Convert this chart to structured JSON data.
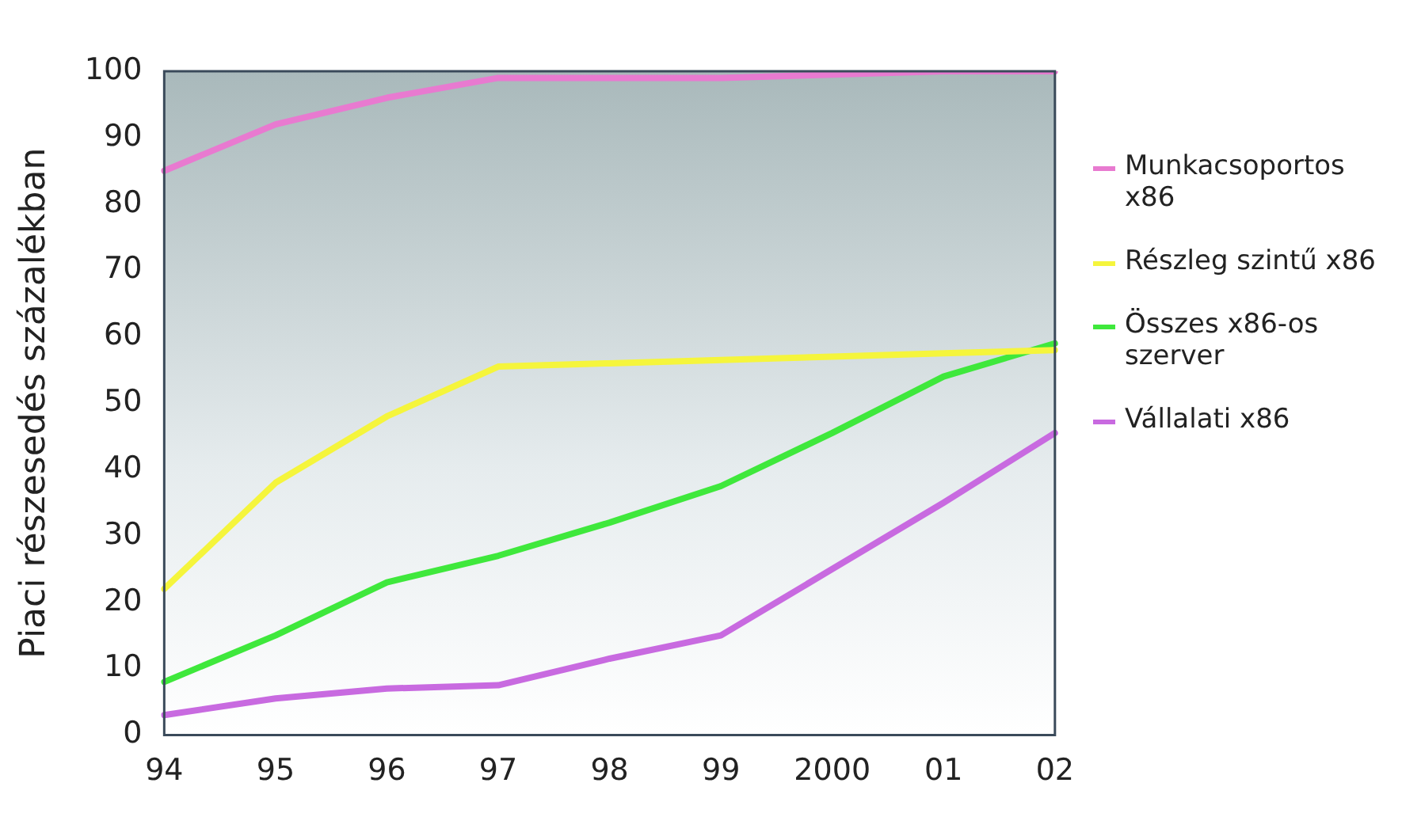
{
  "chart_data": {
    "type": "line",
    "ylabel": "Piaci részesedés százalékban",
    "categories": [
      "94",
      "95",
      "96",
      "97",
      "98",
      "99",
      "2000",
      "01",
      "02"
    ],
    "ylim": [
      0,
      100
    ],
    "yticks": [
      0,
      10,
      20,
      30,
      40,
      50,
      60,
      70,
      80,
      90,
      100
    ],
    "grid": false,
    "legend": "right",
    "marker": "none",
    "series": [
      {
        "name": "Munkacsoportos x86",
        "color": "#e87ad0",
        "values": [
          85,
          92,
          96,
          99,
          99,
          99,
          99.5,
          100,
          100
        ]
      },
      {
        "name": "Részleg szintű x86",
        "color": "#f5f53c",
        "values": [
          22,
          38,
          48,
          55.5,
          56,
          56.5,
          57,
          57.5,
          58
        ]
      },
      {
        "name": "Összes x86-os szerver",
        "color": "#3fe83c",
        "values": [
          8,
          15,
          23,
          27,
          32,
          37.5,
          45.5,
          54,
          59
        ]
      },
      {
        "name": "Vállalati x86",
        "color": "#c86ae0",
        "values": [
          3,
          5.5,
          7,
          7.5,
          11.5,
          15,
          25,
          35,
          45.5
        ]
      }
    ]
  }
}
